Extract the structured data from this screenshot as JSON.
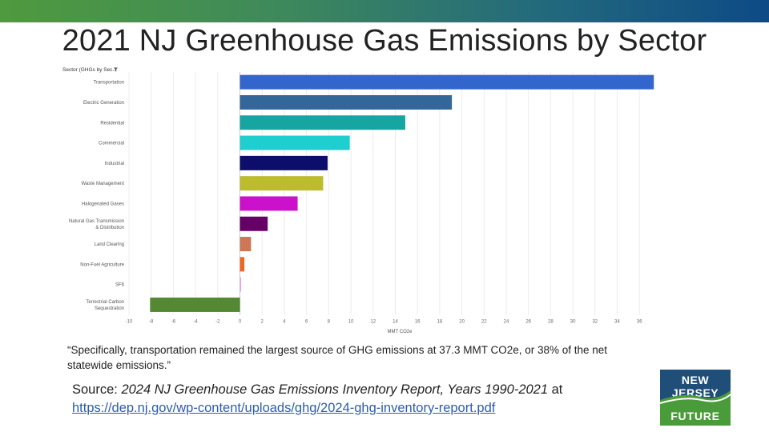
{
  "slide": {
    "title": "2021 NJ Greenhouse Gas Emissions by Sector",
    "quote": "“Specifically, transportation remained the largest source of GHG emissions at 37.3 MMT CO2e, or 38% of the net statewide emissions.”",
    "source_prefix": "Source:  ",
    "source_report": "2024 NJ Greenhouse Gas Emissions Inventory Report, Years 1990-2021",
    "source_at": " at",
    "source_url": "https://dep.nj.gov/wp-content/uploads/ghg/2024-ghg-inventory-report.pdf"
  },
  "logo": {
    "line1": "NEW JERSEY",
    "line2": "FUTURE",
    "colors": {
      "top": "#1f4e79",
      "bottom": "#4a9b3a"
    }
  },
  "chart_data": {
    "type": "bar",
    "orientation": "horizontal",
    "axis_header": "Sector (GHGs by Sec..",
    "categories": [
      "Transportation",
      "Electric Generation",
      "Residential",
      "Commercial",
      "Industrial",
      "Waste Management",
      "Halogenated Gases",
      "Natural Gas Transmission & Distribution",
      "Land Clearing",
      "Non-Fuel Agriculture",
      "SF6",
      "Terrestrial Carbon Sequestration"
    ],
    "values": [
      37.3,
      19.1,
      14.9,
      9.9,
      7.9,
      7.5,
      5.2,
      2.5,
      1.0,
      0.4,
      0.1,
      -8.1
    ],
    "colors": [
      "#3366cc",
      "#336699",
      "#16a5a0",
      "#1fcfcf",
      "#0d0d6b",
      "#bcbc2e",
      "#cc11cc",
      "#660066",
      "#cc7755",
      "#ee6622",
      "#ee99dd",
      "#558833"
    ],
    "xlabel": "MMT CO2e",
    "xlim": [
      -10,
      37.5
    ],
    "xticks": [
      -10,
      -8,
      -6,
      -4,
      -2,
      0,
      2,
      4,
      6,
      8,
      10,
      12,
      14,
      16,
      18,
      20,
      22,
      24,
      26,
      28,
      30,
      32,
      34,
      36
    ],
    "grid": true
  }
}
